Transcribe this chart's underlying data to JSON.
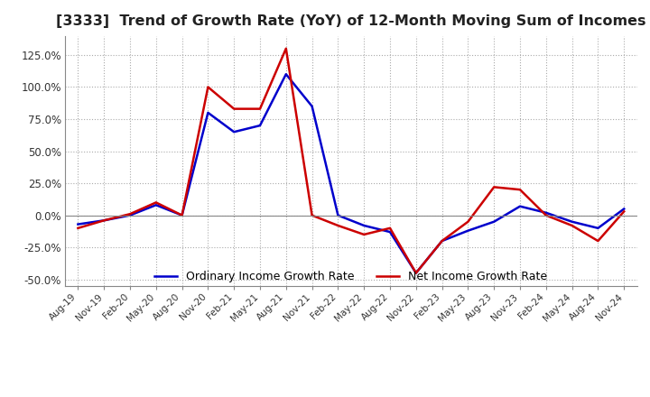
{
  "title": "[3333]  Trend of Growth Rate (YoY) of 12-Month Moving Sum of Incomes",
  "title_fontsize": 11.5,
  "ylim": [
    -0.55,
    1.4
  ],
  "yticks": [
    -0.5,
    -0.25,
    0.0,
    0.25,
    0.5,
    0.75,
    1.0,
    1.25
  ],
  "ytick_labels": [
    "-50.0%",
    "-25.0%",
    "0.0%",
    "25.0%",
    "50.0%",
    "75.0%",
    "100.0%",
    "125.0%"
  ],
  "x_labels": [
    "Aug-19",
    "Nov-19",
    "Feb-20",
    "May-20",
    "Aug-20",
    "Nov-20",
    "Feb-21",
    "May-21",
    "Aug-21",
    "Nov-21",
    "Feb-22",
    "May-22",
    "Aug-22",
    "Nov-22",
    "Feb-23",
    "May-23",
    "Aug-23",
    "Nov-23",
    "Feb-24",
    "May-24",
    "Aug-24",
    "Nov-24"
  ],
  "ordinary_income": [
    -0.07,
    -0.04,
    0.0,
    0.08,
    0.0,
    0.8,
    0.65,
    0.7,
    1.1,
    0.85,
    0.0,
    -0.08,
    -0.13,
    -0.45,
    -0.2,
    -0.12,
    -0.05,
    0.07,
    0.02,
    -0.05,
    -0.1,
    0.05
  ],
  "net_income": [
    -0.1,
    -0.04,
    0.01,
    0.1,
    0.0,
    1.0,
    0.83,
    0.83,
    1.3,
    0.0,
    -0.08,
    -0.15,
    -0.1,
    -0.45,
    -0.2,
    -0.05,
    0.22,
    0.2,
    0.0,
    -0.08,
    -0.2,
    0.03
  ],
  "line_color_ordinary": "#0000CC",
  "line_color_net": "#CC0000",
  "line_width": 1.8,
  "background_color": "#FFFFFF",
  "grid_color": "#AAAAAA",
  "legend_ordinary": "Ordinary Income Growth Rate",
  "legend_net": "Net Income Growth Rate"
}
